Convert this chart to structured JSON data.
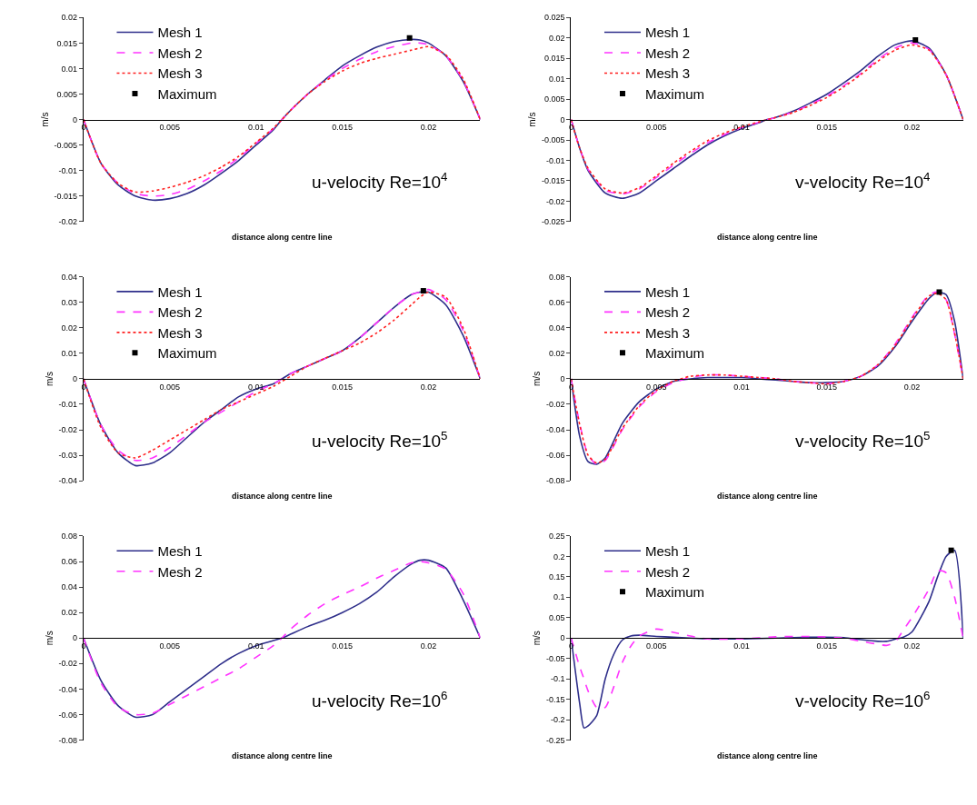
{
  "chart_data": [
    {
      "type": "line",
      "title": "u-velocity Re=10$^{4}$",
      "xlabel": "distance along centre line",
      "ylabel": "m/s",
      "legend": "top left",
      "xlim": [
        0,
        0.023
      ],
      "xticks": [
        0,
        0.005,
        0.01,
        0.015,
        0.02
      ],
      "ylim": [
        -0.02,
        0.02
      ],
      "yticks": [
        -0.02,
        -0.015,
        -0.01,
        -0.005,
        0,
        0.005,
        0.01,
        0.015,
        0.02
      ],
      "series": [
        {
          "name": "Mesh 1",
          "color": "#2e2e8a",
          "line_style": "solid",
          "x": [
            0,
            0.001,
            0.002,
            0.003,
            0.004,
            0.005,
            0.006,
            0.007,
            0.008,
            0.009,
            0.01,
            0.011,
            0.0115,
            0.012,
            0.013,
            0.014,
            0.015,
            0.016,
            0.017,
            0.018,
            0.019,
            0.0195,
            0.02,
            0.021,
            0.022,
            0.023
          ],
          "values": [
            0,
            -0.0085,
            -0.0128,
            -0.015,
            -0.0158,
            -0.0155,
            -0.0145,
            -0.0128,
            -0.0105,
            -0.008,
            -0.005,
            -0.002,
            0,
            0.0018,
            0.005,
            0.0078,
            0.0105,
            0.0125,
            0.0142,
            0.0153,
            0.0157,
            0.0156,
            0.015,
            0.0125,
            0.0075,
            0
          ]
        },
        {
          "name": "Mesh 2",
          "color": "#ff33ff",
          "line_style": "dashed",
          "x": [
            0,
            0.001,
            0.002,
            0.003,
            0.004,
            0.005,
            0.006,
            0.007,
            0.008,
            0.009,
            0.01,
            0.011,
            0.0115,
            0.012,
            0.013,
            0.014,
            0.015,
            0.016,
            0.017,
            0.018,
            0.019,
            0.0195,
            0.02,
            0.021,
            0.022,
            0.023
          ],
          "values": [
            0,
            -0.0085,
            -0.0125,
            -0.0145,
            -0.015,
            -0.0147,
            -0.0137,
            -0.012,
            -0.01,
            -0.0075,
            -0.0047,
            -0.0018,
            0,
            0.0018,
            0.005,
            0.0077,
            0.01,
            0.0118,
            0.0133,
            0.0143,
            0.015,
            0.015,
            0.0147,
            0.0125,
            0.0077,
            0
          ]
        },
        {
          "name": "Mesh 3",
          "color": "#ff2020",
          "line_style": "dotted",
          "x": [
            0,
            0.001,
            0.002,
            0.003,
            0.004,
            0.005,
            0.006,
            0.007,
            0.008,
            0.009,
            0.01,
            0.011,
            0.0115,
            0.012,
            0.013,
            0.014,
            0.015,
            0.016,
            0.017,
            0.018,
            0.019,
            0.0195,
            0.02,
            0.021,
            0.022,
            0.023
          ],
          "values": [
            0,
            -0.0085,
            -0.0125,
            -0.0142,
            -0.014,
            -0.0133,
            -0.0123,
            -0.011,
            -0.0093,
            -0.0072,
            -0.0045,
            -0.0017,
            0,
            0.0018,
            0.005,
            0.0075,
            0.0095,
            0.011,
            0.012,
            0.0128,
            0.0136,
            0.014,
            0.0143,
            0.0127,
            0.008,
            0
          ]
        },
        {
          "name": "Maximum",
          "type": "scatter",
          "marker": "square",
          "color": "#000000",
          "x": [
            0.0189
          ],
          "values": [
            0.016
          ]
        }
      ]
    },
    {
      "type": "line",
      "title": "v-velocity Re=10$^{4}$",
      "xlabel": "distance along centre line",
      "ylabel": "m/s",
      "legend": "top left",
      "xlim": [
        0,
        0.023
      ],
      "xticks": [
        0,
        0.005,
        0.01,
        0.015,
        0.02
      ],
      "ylim": [
        -0.025,
        0.025
      ],
      "yticks": [
        -0.025,
        -0.02,
        -0.015,
        -0.01,
        -0.005,
        0,
        0.005,
        0.01,
        0.015,
        0.02,
        0.025
      ],
      "series": [
        {
          "name": "Mesh 1",
          "color": "#2e2e8a",
          "line_style": "solid",
          "x": [
            0,
            0.0005,
            0.001,
            0.002,
            0.003,
            0.004,
            0.005,
            0.006,
            0.007,
            0.008,
            0.009,
            0.01,
            0.011,
            0.0115,
            0.012,
            0.013,
            0.014,
            0.015,
            0.016,
            0.017,
            0.018,
            0.019,
            0.02,
            0.021,
            0.022,
            0.023
          ],
          "values": [
            0,
            -0.007,
            -0.0125,
            -0.018,
            -0.0193,
            -0.018,
            -0.015,
            -0.012,
            -0.009,
            -0.0062,
            -0.004,
            -0.0022,
            -0.0008,
            0,
            0.0005,
            0.002,
            0.004,
            0.0062,
            0.009,
            0.012,
            0.0155,
            0.0183,
            0.0193,
            0.0175,
            0.011,
            0
          ]
        },
        {
          "name": "Mesh 2",
          "color": "#ff33ff",
          "line_style": "dashed",
          "x": [
            0,
            0.0005,
            0.001,
            0.002,
            0.003,
            0.004,
            0.005,
            0.006,
            0.007,
            0.008,
            0.009,
            0.01,
            0.011,
            0.0115,
            0.012,
            0.013,
            0.014,
            0.015,
            0.016,
            0.017,
            0.018,
            0.019,
            0.02,
            0.021,
            0.022,
            0.023
          ],
          "values": [
            0,
            -0.007,
            -0.0122,
            -0.0173,
            -0.0182,
            -0.017,
            -0.0142,
            -0.0112,
            -0.0083,
            -0.0057,
            -0.0037,
            -0.002,
            -0.0007,
            0,
            0.0005,
            0.0018,
            0.0036,
            0.0057,
            0.0083,
            0.0113,
            0.0147,
            0.0175,
            0.0188,
            0.0172,
            0.011,
            0
          ]
        },
        {
          "name": "Mesh 3",
          "color": "#ff2020",
          "line_style": "dotted",
          "x": [
            0,
            0.0005,
            0.001,
            0.002,
            0.003,
            0.004,
            0.005,
            0.006,
            0.007,
            0.008,
            0.009,
            0.01,
            0.011,
            0.0115,
            0.012,
            0.013,
            0.014,
            0.015,
            0.016,
            0.017,
            0.018,
            0.019,
            0.02,
            0.021,
            0.022,
            0.023
          ],
          "values": [
            0,
            -0.007,
            -0.012,
            -0.017,
            -0.018,
            -0.0167,
            -0.0138,
            -0.0107,
            -0.0078,
            -0.0052,
            -0.0033,
            -0.0018,
            -0.0006,
            0,
            0.0005,
            0.0017,
            0.0034,
            0.0054,
            0.008,
            0.011,
            0.0143,
            0.017,
            0.0183,
            0.017,
            0.011,
            0
          ]
        },
        {
          "name": "Maximum",
          "type": "scatter",
          "marker": "square",
          "color": "#000000",
          "x": [
            0.0202
          ],
          "values": [
            0.0195
          ]
        }
      ]
    },
    {
      "type": "line",
      "title": "u-velocity Re=10$^{5}$",
      "xlabel": "distance along centre line",
      "ylabel": "m/s",
      "legend": "top left",
      "xlim": [
        0,
        0.023
      ],
      "xticks": [
        0,
        0.005,
        0.01,
        0.015,
        0.02
      ],
      "ylim": [
        -0.04,
        0.04
      ],
      "yticks": [
        -0.04,
        -0.03,
        -0.02,
        -0.01,
        0,
        0.01,
        0.02,
        0.03,
        0.04
      ],
      "series": [
        {
          "name": "Mesh 1",
          "color": "#2e2e8a",
          "line_style": "solid",
          "x": [
            0,
            0.001,
            0.002,
            0.003,
            0.004,
            0.005,
            0.006,
            0.007,
            0.008,
            0.009,
            0.01,
            0.011,
            0.0115,
            0.012,
            0.013,
            0.014,
            0.015,
            0.016,
            0.017,
            0.018,
            0.019,
            0.0195,
            0.02,
            0.021,
            0.022,
            0.023
          ],
          "values": [
            0,
            -0.018,
            -0.029,
            -0.034,
            -0.033,
            -0.029,
            -0.023,
            -0.017,
            -0.012,
            -0.007,
            -0.004,
            -0.002,
            0,
            0.002,
            0.005,
            0.008,
            0.011,
            0.016,
            0.022,
            0.028,
            0.033,
            0.034,
            0.034,
            0.029,
            0.017,
            0
          ]
        },
        {
          "name": "Mesh 2",
          "color": "#ff33ff",
          "line_style": "dashed",
          "x": [
            0,
            0.001,
            0.002,
            0.003,
            0.004,
            0.005,
            0.006,
            0.007,
            0.008,
            0.009,
            0.01,
            0.011,
            0.0115,
            0.012,
            0.013,
            0.014,
            0.015,
            0.016,
            0.017,
            0.018,
            0.019,
            0.0195,
            0.02,
            0.021,
            0.022,
            0.023
          ],
          "values": [
            0,
            -0.018,
            -0.028,
            -0.032,
            -0.031,
            -0.027,
            -0.022,
            -0.017,
            -0.013,
            -0.009,
            -0.005,
            -0.002,
            0,
            0.002,
            0.005,
            0.008,
            0.011,
            0.016,
            0.022,
            0.028,
            0.033,
            0.034,
            0.035,
            0.031,
            0.019,
            0
          ]
        },
        {
          "name": "Mesh 3",
          "color": "#ff2020",
          "line_style": "dotted",
          "x": [
            0,
            0.001,
            0.002,
            0.003,
            0.004,
            0.005,
            0.006,
            0.007,
            0.008,
            0.009,
            0.01,
            0.011,
            0.0115,
            0.012,
            0.013,
            0.014,
            0.015,
            0.016,
            0.017,
            0.018,
            0.019,
            0.0195,
            0.02,
            0.021,
            0.022,
            0.023
          ],
          "values": [
            0,
            -0.019,
            -0.029,
            -0.031,
            -0.028,
            -0.024,
            -0.02,
            -0.016,
            -0.012,
            -0.009,
            -0.006,
            -0.003,
            -0.001,
            0.001,
            0.005,
            0.008,
            0.011,
            0.014,
            0.018,
            0.023,
            0.029,
            0.032,
            0.034,
            0.032,
            0.02,
            0
          ]
        },
        {
          "name": "Maximum",
          "type": "scatter",
          "marker": "square",
          "color": "#000000",
          "x": [
            0.0197
          ],
          "values": [
            0.0345
          ]
        }
      ]
    },
    {
      "type": "line",
      "title": "v-velocity Re=10$^{5}$",
      "xlabel": "distance along centre line",
      "ylabel": "m/s",
      "legend": "top left",
      "xlim": [
        0,
        0.023
      ],
      "xticks": [
        0,
        0.005,
        0.01,
        0.015,
        0.02
      ],
      "ylim": [
        -0.08,
        0.08
      ],
      "yticks": [
        -0.08,
        -0.06,
        -0.04,
        -0.02,
        0,
        0.02,
        0.04,
        0.06,
        0.08
      ],
      "series": [
        {
          "name": "Mesh 1",
          "color": "#2e2e8a",
          "line_style": "solid",
          "x": [
            0,
            0.0005,
            0.001,
            0.0015,
            0.002,
            0.003,
            0.004,
            0.005,
            0.006,
            0.007,
            0.008,
            0.009,
            0.01,
            0.011,
            0.012,
            0.013,
            0.014,
            0.015,
            0.016,
            0.017,
            0.018,
            0.019,
            0.02,
            0.021,
            0.0215,
            0.022,
            0.0225,
            0.023
          ],
          "values": [
            0,
            -0.045,
            -0.065,
            -0.067,
            -0.062,
            -0.035,
            -0.018,
            -0.008,
            -0.002,
            0,
            0.001,
            0.001,
            0.001,
            0,
            -0.001,
            -0.002,
            -0.003,
            -0.003,
            -0.002,
            0.002,
            0.01,
            0.025,
            0.045,
            0.063,
            0.068,
            0.066,
            0.045,
            0
          ]
        },
        {
          "name": "Mesh 2",
          "color": "#ff33ff",
          "line_style": "dashed",
          "x": [
            0,
            0.0005,
            0.001,
            0.0015,
            0.002,
            0.003,
            0.004,
            0.005,
            0.006,
            0.007,
            0.008,
            0.009,
            0.01,
            0.011,
            0.012,
            0.013,
            0.014,
            0.015,
            0.016,
            0.017,
            0.018,
            0.019,
            0.02,
            0.021,
            0.0215,
            0.022,
            0.0225,
            0.023
          ],
          "values": [
            0,
            -0.035,
            -0.06,
            -0.067,
            -0.064,
            -0.04,
            -0.022,
            -0.01,
            -0.003,
            0.001,
            0.003,
            0.003,
            0.002,
            0.001,
            0,
            -0.002,
            -0.003,
            -0.004,
            -0.002,
            0.002,
            0.011,
            0.027,
            0.048,
            0.066,
            0.068,
            0.062,
            0.035,
            0
          ]
        },
        {
          "name": "Mesh 3",
          "color": "#ff2020",
          "line_style": "dotted",
          "x": [
            0,
            0.0005,
            0.001,
            0.0015,
            0.002,
            0.003,
            0.004,
            0.005,
            0.006,
            0.007,
            0.008,
            0.009,
            0.01,
            0.011,
            0.012,
            0.013,
            0.014,
            0.015,
            0.016,
            0.017,
            0.018,
            0.019,
            0.02,
            0.021,
            0.0215,
            0.022,
            0.0225,
            0.023
          ],
          "values": [
            0,
            -0.036,
            -0.06,
            -0.066,
            -0.063,
            -0.039,
            -0.021,
            -0.009,
            -0.002,
            0.002,
            0.003,
            0.003,
            0.002,
            0.001,
            0,
            -0.002,
            -0.003,
            -0.004,
            -0.002,
            0.002,
            0.011,
            0.026,
            0.047,
            0.065,
            0.067,
            0.062,
            0.036,
            0
          ]
        },
        {
          "name": "Maximum",
          "type": "scatter",
          "marker": "square",
          "color": "#000000",
          "x": [
            0.0216
          ],
          "values": [
            0.068
          ]
        }
      ]
    },
    {
      "type": "line",
      "title": "u-velocity Re=10$^{6}$",
      "xlabel": "distance along centre line",
      "ylabel": "m/s",
      "legend": "top left",
      "xlim": [
        0,
        0.023
      ],
      "xticks": [
        0,
        0.005,
        0.01,
        0.015,
        0.02
      ],
      "ylim": [
        -0.08,
        0.08
      ],
      "yticks": [
        -0.08,
        -0.06,
        -0.04,
        -0.02,
        0,
        0.02,
        0.04,
        0.06,
        0.08
      ],
      "series": [
        {
          "name": "Mesh 1",
          "color": "#2e2e8a",
          "line_style": "solid",
          "x": [
            0,
            0.001,
            0.002,
            0.003,
            0.004,
            0.005,
            0.006,
            0.007,
            0.008,
            0.009,
            0.01,
            0.011,
            0.0115,
            0.012,
            0.013,
            0.014,
            0.015,
            0.016,
            0.017,
            0.018,
            0.019,
            0.0195,
            0.02,
            0.021,
            0.022,
            0.023
          ],
          "values": [
            0,
            -0.033,
            -0.053,
            -0.062,
            -0.06,
            -0.05,
            -0.04,
            -0.03,
            -0.02,
            -0.012,
            -0.006,
            -0.002,
            0,
            0.003,
            0.009,
            0.014,
            0.02,
            0.027,
            0.036,
            0.048,
            0.058,
            0.061,
            0.061,
            0.055,
            0.03,
            0
          ]
        },
        {
          "name": "Mesh 2",
          "color": "#ff33ff",
          "line_style": "dashed",
          "x": [
            0,
            0.001,
            0.002,
            0.003,
            0.004,
            0.005,
            0.006,
            0.007,
            0.008,
            0.009,
            0.01,
            0.011,
            0.0115,
            0.012,
            0.013,
            0.014,
            0.015,
            0.016,
            0.017,
            0.018,
            0.019,
            0.0195,
            0.02,
            0.021,
            0.022,
            0.023
          ],
          "values": [
            0,
            -0.035,
            -0.054,
            -0.06,
            -0.059,
            -0.052,
            -0.045,
            -0.038,
            -0.031,
            -0.024,
            -0.015,
            -0.006,
            0,
            0.007,
            0.018,
            0.027,
            0.034,
            0.04,
            0.047,
            0.053,
            0.059,
            0.06,
            0.059,
            0.054,
            0.035,
            0
          ]
        }
      ]
    },
    {
      "type": "line",
      "title": "v-velocity Re=10$^{6}$",
      "xlabel": "distance along centre line",
      "ylabel": "m/s",
      "legend": "top left",
      "xlim": [
        0,
        0.023
      ],
      "xticks": [
        0,
        0.005,
        0.01,
        0.015,
        0.02
      ],
      "ylim": [
        -0.25,
        0.25
      ],
      "yticks": [
        -0.25,
        -0.2,
        -0.15,
        -0.1,
        -0.05,
        0,
        0.05,
        0.1,
        0.15,
        0.2,
        0.25
      ],
      "series": [
        {
          "name": "Mesh 1",
          "color": "#2e2e8a",
          "line_style": "solid",
          "x": [
            0,
            0.0005,
            0.00075,
            0.001,
            0.0015,
            0.002,
            0.0025,
            0.003,
            0.0035,
            0.004,
            0.005,
            0.006,
            0.007,
            0.008,
            0.01,
            0.012,
            0.014,
            0.016,
            0.017,
            0.018,
            0.0185,
            0.019,
            0.0195,
            0.02,
            0.021,
            0.0215,
            0.022,
            0.0225,
            0.023
          ],
          "values": [
            0,
            -0.16,
            -0.22,
            -0.215,
            -0.19,
            -0.1,
            -0.04,
            -0.005,
            0.005,
            0.007,
            0.004,
            0.002,
            0,
            -0.002,
            -0.002,
            0,
            0.002,
            0.001,
            -0.004,
            -0.008,
            -0.008,
            -0.003,
            0.002,
            0.015,
            0.09,
            0.15,
            0.2,
            0.215,
            0
          ]
        },
        {
          "name": "Mesh 2",
          "color": "#ff33ff",
          "line_style": "dashed",
          "x": [
            0,
            0.0005,
            0.00075,
            0.001,
            0.0015,
            0.002,
            0.0025,
            0.003,
            0.0035,
            0.004,
            0.005,
            0.006,
            0.007,
            0.008,
            0.01,
            0.012,
            0.014,
            0.016,
            0.017,
            0.018,
            0.0185,
            0.019,
            0.0195,
            0.02,
            0.021,
            0.0215,
            0.022,
            0.0225,
            0.023
          ],
          "values": [
            0,
            -0.07,
            -0.1,
            -0.13,
            -0.17,
            -0.17,
            -0.12,
            -0.06,
            -0.02,
            0.005,
            0.022,
            0.014,
            0.005,
            -0.002,
            -0.002,
            0.003,
            0.004,
            0,
            -0.008,
            -0.015,
            -0.018,
            -0.01,
            0.02,
            0.05,
            0.12,
            0.165,
            0.16,
            0.1,
            0
          ]
        },
        {
          "name": "Maximum",
          "type": "scatter",
          "marker": "square",
          "color": "#000000",
          "x": [
            0.0223
          ],
          "values": [
            0.215
          ]
        }
      ]
    }
  ]
}
